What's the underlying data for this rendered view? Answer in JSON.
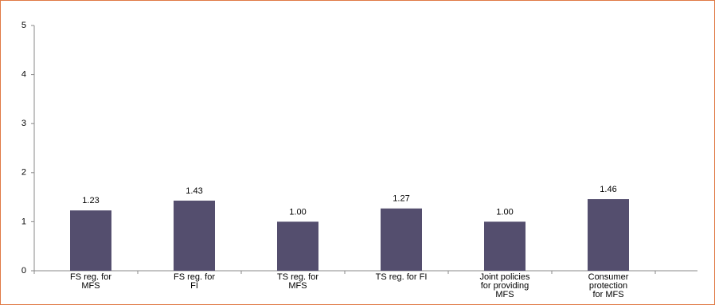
{
  "chart_data": {
    "type": "bar",
    "categories": [
      "FS reg. for\nMFS",
      "FS reg. for\nFI",
      "TS reg. for\nMFS",
      "TS reg. for FI",
      "Joint policies\nfor providing\nMFS",
      "Consumer\nprotection\nfor MFS"
    ],
    "values": [
      1.23,
      1.43,
      1.0,
      1.27,
      1.0,
      1.46
    ],
    "value_labels": [
      "1.23",
      "1.43",
      "1.00",
      "1.27",
      "1.00",
      "1.46"
    ],
    "color": "#544e6e",
    "ylim": [
      0,
      5
    ],
    "yticks": [
      0,
      1,
      2,
      3,
      4,
      5
    ],
    "grid": false
  }
}
